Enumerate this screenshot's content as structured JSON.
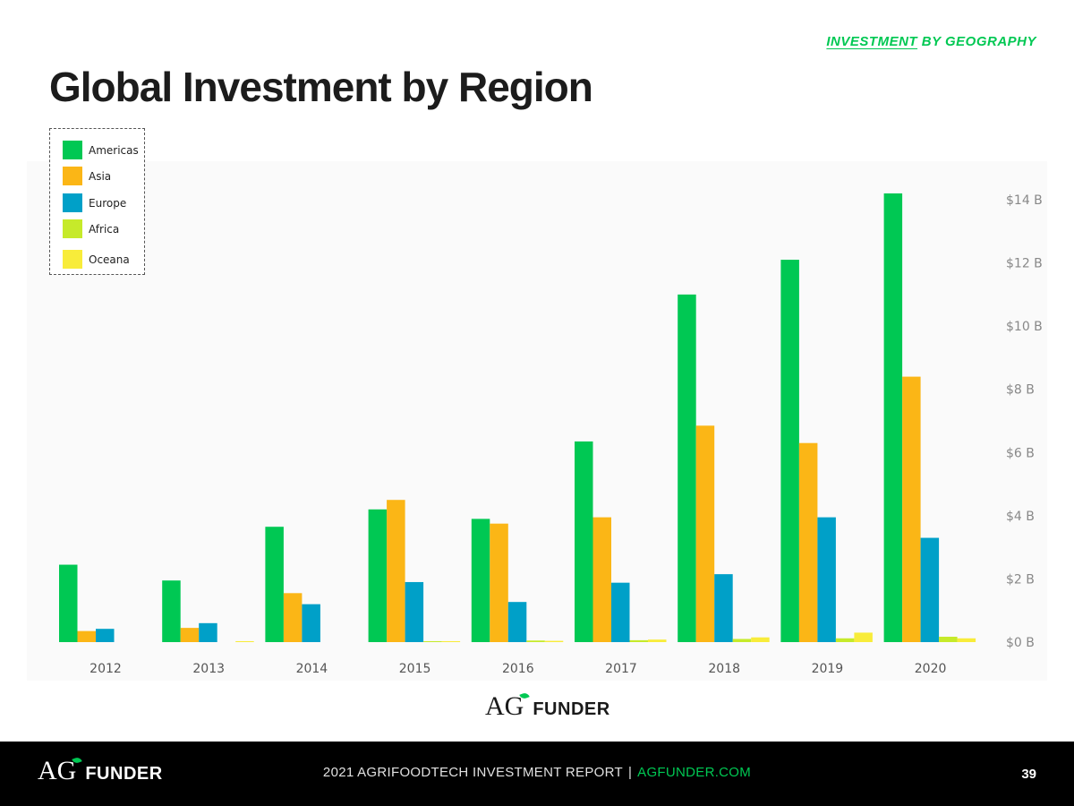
{
  "header": {
    "tag_strong": "INVESTMENT",
    "tag_rest": " BY GEOGRAPHY",
    "title": "Global Investment by Region"
  },
  "colors": {
    "Americas": "#00c853",
    "Asia": "#fbb616",
    "Europe": "#00a0c8",
    "Africa": "#c6ea2a",
    "Oceana": "#f8ec3a",
    "accent": "#00c853",
    "axis_text": "#888888"
  },
  "chart_data": {
    "type": "bar",
    "title": "Global Investment by Region",
    "categories": [
      "2012",
      "2013",
      "2014",
      "2015",
      "2016",
      "2017",
      "2018",
      "2019",
      "2020"
    ],
    "series": [
      {
        "name": "Americas",
        "values": [
          2.45,
          1.95,
          3.65,
          4.2,
          3.9,
          6.35,
          11.0,
          12.1,
          14.2
        ]
      },
      {
        "name": "Asia",
        "values": [
          0.35,
          0.45,
          1.55,
          4.5,
          3.75,
          3.95,
          6.85,
          6.3,
          8.4
        ]
      },
      {
        "name": "Europe",
        "values": [
          0.42,
          0.6,
          1.2,
          1.9,
          1.27,
          1.88,
          2.15,
          3.95,
          3.3
        ]
      },
      {
        "name": "Africa",
        "values": [
          0.0,
          0.0,
          0.0,
          0.03,
          0.05,
          0.06,
          0.1,
          0.12,
          0.17
        ]
      },
      {
        "name": "Oceana",
        "values": [
          0.0,
          0.03,
          0.0,
          0.03,
          0.04,
          0.08,
          0.15,
          0.3,
          0.12
        ]
      }
    ],
    "y_ticks": [
      "$0 B",
      "$2 B",
      "$4 B",
      "$6 B",
      "$8 B",
      "$10 B",
      "$12 B",
      "$14 B"
    ],
    "ylim": [
      0,
      14
    ],
    "y_axis_side": "right",
    "grid": false,
    "legend_placement": "top-left",
    "xlabel": "",
    "ylabel": ""
  },
  "legend": {
    "items": [
      "Americas",
      "Asia",
      "Europe",
      "Africa",
      "Oceana"
    ]
  },
  "branding": {
    "logo_a": "A",
    "logo_g": "G",
    "logo_funder": "FUNDER"
  },
  "footer": {
    "report": "2021 AGRIFOODTECH INVESTMENT REPORT",
    "separator": "|",
    "site": "AGFUNDER.COM",
    "page": "39"
  }
}
